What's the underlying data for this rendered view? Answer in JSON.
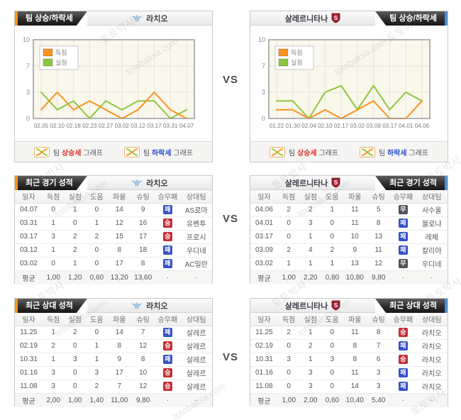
{
  "page": {
    "vs": "VS"
  },
  "watermarks": {
    "kr": "토토박사",
    "en": "totobaksa.com"
  },
  "teams": {
    "left": {
      "name": "라치오"
    },
    "right": {
      "name": "살레르니타나",
      "shield_letter": "S"
    }
  },
  "titles": {
    "trend": "팀 상승/하락세",
    "recent": "최근 경기 성적",
    "h2h": "최근 상대 성적"
  },
  "colors": {
    "accent_left": "#f7941d",
    "accent_right": "#4f8fd6",
    "score_line": "#fb9220",
    "concede_line": "#8dc63f"
  },
  "badge_colors": {
    "승": "#c42e35",
    "무": "#515159",
    "패": "#3552c4"
  },
  "chart_footer": [
    {
      "prefix": "팀 ",
      "word": "상승세",
      "suffix": " 그래프",
      "color": "#dd3327"
    },
    {
      "prefix": "팀 ",
      "word": "하락세",
      "suffix": " 그래프",
      "color": "#2b50c8"
    }
  ],
  "chart_data": [
    {
      "type": "line",
      "title": "팀 상승/하락세 - 라치오",
      "x": [
        "02.05",
        "02.10",
        "02.18",
        "02.23",
        "02.27",
        "03.02",
        "03.12",
        "03.17",
        "03.31",
        "04.07"
      ],
      "yticks": [
        0,
        3,
        7,
        10
      ],
      "ylim": [
        0,
        10
      ],
      "grid": true,
      "legend_position": "top-left",
      "series": [
        {
          "name": "득점",
          "color": "#fb9220",
          "values": [
            1,
            3,
            1,
            2,
            1,
            0,
            1,
            3,
            1,
            0
          ]
        },
        {
          "name": "실점",
          "color": "#8dc63f",
          "values": [
            3,
            1,
            2,
            0,
            2,
            1,
            2,
            2,
            0,
            1
          ]
        }
      ]
    },
    {
      "type": "line",
      "title": "팀 상승/하락세 - 살레르니타나",
      "x": [
        "01.22",
        "01.30",
        "02.04",
        "02.10",
        "02.17",
        "03.02",
        "03.09",
        "03.17",
        "04.01",
        "04.06"
      ],
      "yticks": [
        0,
        3,
        7,
        10
      ],
      "ylim": [
        0,
        10
      ],
      "grid": true,
      "legend_position": "top-left",
      "series": [
        {
          "name": "득점",
          "color": "#fb9220",
          "values": [
            1,
            1,
            0,
            1,
            0,
            1,
            2,
            0,
            0,
            2
          ]
        },
        {
          "name": "실점",
          "color": "#8dc63f",
          "values": [
            2,
            2,
            0,
            3,
            4,
            1,
            4,
            1,
            3,
            2
          ]
        }
      ]
    }
  ],
  "table_headers": [
    "일자",
    "득점",
    "실점",
    "도움",
    "파울",
    "슈팅",
    "승무패",
    "상대팀"
  ],
  "tables": {
    "recent_left": {
      "rows": [
        [
          "04.07",
          "0",
          "1",
          "0",
          "14",
          "9",
          "패",
          "AS로마"
        ],
        [
          "03.31",
          "1",
          "0",
          "1",
          "12",
          "16",
          "승",
          "유벤투"
        ],
        [
          "03.17",
          "3",
          "2",
          "2",
          "15",
          "17",
          "승",
          "프로시"
        ],
        [
          "03.12",
          "1",
          "2",
          "0",
          "8",
          "18",
          "패",
          "우디네"
        ],
        [
          "03.02",
          "0",
          "1",
          "0",
          "17",
          "8",
          "패",
          "AC밀란"
        ]
      ],
      "avg": [
        "평균",
        "1,00",
        "1,20",
        "0,60",
        "13,20",
        "13,60",
        "·",
        "·"
      ]
    },
    "recent_right": {
      "rows": [
        [
          "04.06",
          "2",
          "2",
          "1",
          "11",
          "5",
          "무",
          "사수올"
        ],
        [
          "04.01",
          "0",
          "3",
          "0",
          "11",
          "8",
          "패",
          "볼로냐"
        ],
        [
          "03.17",
          "0",
          "1",
          "0",
          "10",
          "13",
          "패",
          "레체"
        ],
        [
          "03.09",
          "2",
          "4",
          "2",
          "9",
          "11",
          "패",
          "칼리아"
        ],
        [
          "03.02",
          "1",
          "1",
          "1",
          "13",
          "12",
          "무",
          "우디네"
        ]
      ],
      "avg": [
        "평균",
        "1,00",
        "2,20",
        "0,80",
        "10,80",
        "9,80",
        "·",
        "·"
      ]
    },
    "h2h_left": {
      "rows": [
        [
          "11.25",
          "1",
          "2",
          "0",
          "14",
          "7",
          "패",
          "살레르"
        ],
        [
          "02.19",
          "2",
          "0",
          "1",
          "8",
          "12",
          "승",
          "살레르"
        ],
        [
          "10.31",
          "1",
          "3",
          "1",
          "9",
          "8",
          "패",
          "살레르"
        ],
        [
          "01.16",
          "3",
          "0",
          "3",
          "17",
          "10",
          "승",
          "살레르"
        ],
        [
          "11.08",
          "3",
          "0",
          "2",
          "7",
          "12",
          "승",
          "살레르"
        ]
      ],
      "avg": [
        "평균",
        "2,00",
        "1,00",
        "1,40",
        "11,00",
        "9,80",
        "·",
        "·"
      ]
    },
    "h2h_right": {
      "rows": [
        [
          "11.25",
          "2",
          "1",
          "0",
          "11",
          "8",
          "승",
          "라치오"
        ],
        [
          "02.19",
          "0",
          "2",
          "0",
          "8",
          "7",
          "패",
          "라치오"
        ],
        [
          "10.31",
          "3",
          "1",
          "3",
          "8",
          "6",
          "승",
          "라치오"
        ],
        [
          "01.16",
          "0",
          "3",
          "0",
          "11",
          "3",
          "패",
          "라치오"
        ],
        [
          "11.08",
          "0",
          "3",
          "0",
          "14",
          "3",
          "패",
          "라치오"
        ]
      ],
      "avg": [
        "평균",
        "1,00",
        "2,00",
        "0,60",
        "10,40",
        "5,40",
        "·",
        "·"
      ]
    }
  }
}
